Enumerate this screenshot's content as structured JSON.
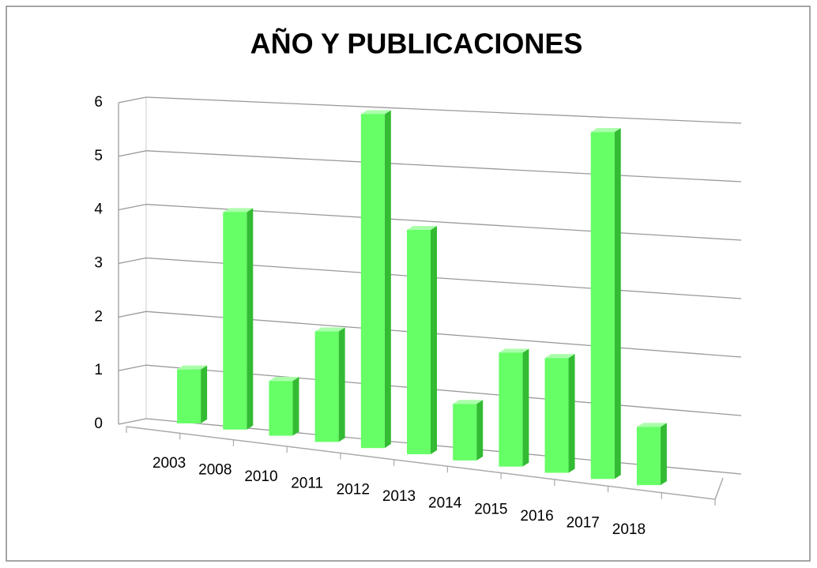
{
  "chart_data": {
    "type": "bar3d",
    "title": "AÑO Y PUBLICACIONES",
    "categories": [
      "2003",
      "2008",
      "2010",
      "2011",
      "2012",
      "2013",
      "2014",
      "2015",
      "2016",
      "2017",
      "2018"
    ],
    "values": [
      1,
      4,
      1,
      2,
      6,
      4,
      1,
      2,
      2,
      6,
      1
    ],
    "color": "#66ff66",
    "ylim": [
      0,
      6
    ],
    "yticks": [
      0,
      1,
      2,
      3,
      4,
      5,
      6
    ],
    "grid": true
  }
}
